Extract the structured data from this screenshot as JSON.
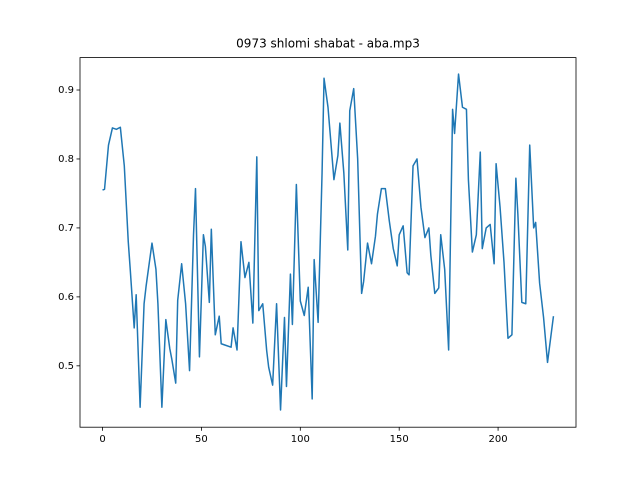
{
  "chart_data": {
    "type": "line",
    "title": "0973 shlomi shabat - aba.mp3",
    "x": [
      0,
      1,
      3,
      5,
      7,
      9,
      11,
      13,
      14,
      16,
      17,
      19,
      21,
      22,
      25,
      27,
      28,
      30,
      32,
      34,
      35,
      37,
      38,
      40,
      42,
      44,
      46,
      47,
      49,
      51,
      52,
      54,
      55,
      57,
      59,
      60,
      62,
      65,
      66,
      68,
      70,
      72,
      74,
      76,
      78,
      79,
      81,
      83,
      84,
      86,
      88,
      90,
      92,
      93,
      95,
      96,
      98,
      100,
      102,
      104,
      106,
      107,
      109,
      111,
      112,
      114,
      117,
      119,
      120,
      122,
      124,
      125,
      127,
      129,
      131,
      132,
      134,
      136,
      138,
      139,
      141,
      143,
      145,
      147,
      149,
      150,
      152,
      154,
      155,
      157,
      159,
      161,
      163,
      165,
      166,
      168,
      170,
      171,
      173,
      175,
      177,
      178,
      180,
      182,
      184,
      185,
      187,
      189,
      191,
      192,
      194,
      196,
      198,
      199,
      201,
      203,
      205,
      207,
      209,
      210,
      212,
      214,
      216,
      218,
      219,
      221,
      223,
      225,
      228
    ],
    "values": [
      0.755,
      0.756,
      0.82,
      0.845,
      0.843,
      0.846,
      0.79,
      0.68,
      0.64,
      0.555,
      0.603,
      0.44,
      0.59,
      0.615,
      0.678,
      0.64,
      0.59,
      0.44,
      0.567,
      0.525,
      0.51,
      0.475,
      0.595,
      0.648,
      0.59,
      0.493,
      0.69,
      0.757,
      0.513,
      0.69,
      0.673,
      0.592,
      0.698,
      0.545,
      0.572,
      0.532,
      0.53,
      0.527,
      0.555,
      0.523,
      0.68,
      0.628,
      0.65,
      0.562,
      0.803,
      0.58,
      0.59,
      0.522,
      0.498,
      0.472,
      0.59,
      0.436,
      0.57,
      0.47,
      0.633,
      0.56,
      0.763,
      0.594,
      0.573,
      0.614,
      0.452,
      0.654,
      0.563,
      0.78,
      0.917,
      0.875,
      0.77,
      0.805,
      0.852,
      0.78,
      0.668,
      0.87,
      0.902,
      0.8,
      0.605,
      0.622,
      0.678,
      0.648,
      0.688,
      0.72,
      0.757,
      0.757,
      0.71,
      0.67,
      0.645,
      0.69,
      0.703,
      0.635,
      0.632,
      0.79,
      0.8,
      0.73,
      0.686,
      0.7,
      0.66,
      0.605,
      0.613,
      0.69,
      0.64,
      0.523,
      0.872,
      0.837,
      0.923,
      0.875,
      0.872,
      0.77,
      0.665,
      0.69,
      0.81,
      0.67,
      0.7,
      0.705,
      0.648,
      0.793,
      0.73,
      0.65,
      0.54,
      0.545,
      0.772,
      0.72,
      0.592,
      0.59,
      0.82,
      0.7,
      0.708,
      0.62,
      0.57,
      0.505,
      0.572
    ],
    "color": "#1f77b4",
    "xlim": [
      -11.4,
      239.4
    ],
    "ylim": [
      0.411,
      0.947
    ],
    "xticks": [
      0,
      50,
      100,
      150,
      200
    ],
    "yticks": [
      0.5,
      0.6,
      0.7,
      0.8,
      0.9
    ]
  }
}
